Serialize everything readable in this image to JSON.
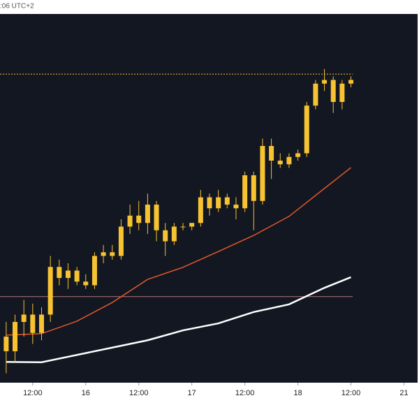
{
  "chart_data": {
    "type": "candlestick",
    "header": ":06 UTC+2",
    "color": "#f7c331",
    "xlim": [
      4.6,
      99.4
    ],
    "ylim": [
      0,
      100
    ],
    "xticks": [
      {
        "value": 12,
        "label": "12:00"
      },
      {
        "value": 24,
        "label": "16"
      },
      {
        "value": 36,
        "label": "12:00"
      },
      {
        "value": 48,
        "label": "17"
      },
      {
        "value": 60,
        "label": "12:00"
      },
      {
        "value": 72,
        "label": "18"
      },
      {
        "value": 84,
        "label": "12:00"
      },
      {
        "value": 96,
        "label": "21"
      }
    ],
    "x": [
      6,
      8,
      10,
      12,
      14,
      16,
      18,
      20,
      22,
      24,
      26,
      28,
      30,
      32,
      34,
      36,
      38,
      40,
      42,
      44,
      46,
      48,
      50,
      52,
      54,
      56,
      58,
      60,
      62,
      64,
      66,
      68,
      70,
      72,
      74,
      76,
      78,
      80,
      82,
      84
    ],
    "open": [
      12,
      8,
      16,
      18,
      13,
      18,
      31,
      28,
      30,
      27,
      26,
      34,
      35,
      34,
      42,
      45,
      43,
      48,
      41,
      38,
      42,
      42,
      43,
      50,
      47,
      50,
      48,
      47,
      56,
      49,
      64,
      60,
      59,
      61,
      62,
      75,
      81,
      82,
      76,
      81
    ],
    "high": [
      16,
      18,
      22,
      21,
      20,
      34,
      33,
      32,
      31,
      29,
      35,
      37,
      37,
      44,
      48,
      49,
      51,
      49,
      43,
      43,
      43,
      43,
      52,
      51,
      52,
      51,
      50,
      57,
      57,
      66,
      66,
      62,
      62,
      63,
      76,
      82,
      85,
      83,
      82,
      83
    ],
    "low": [
      2,
      5,
      12,
      10,
      11,
      16,
      26,
      25,
      26,
      25,
      25,
      32,
      33,
      33,
      40,
      41,
      40,
      38,
      34,
      37,
      41,
      41,
      42,
      45,
      46,
      47,
      44,
      46,
      41,
      48,
      55,
      58,
      58,
      60,
      61,
      74,
      79,
      73,
      74,
      80
    ],
    "close": [
      8,
      16,
      18,
      13,
      18,
      31,
      28,
      30,
      27,
      26,
      34,
      35,
      34,
      42,
      45,
      43,
      48,
      41,
      38,
      42,
      42,
      43,
      50,
      47,
      50,
      48,
      47,
      56,
      49,
      64,
      60,
      59,
      61,
      62,
      75,
      81,
      82,
      76,
      81,
      82
    ],
    "series": [
      {
        "color": "#e0582a",
        "x": [
          6,
          14,
          22,
          30,
          38,
          46,
          54,
          62,
          70,
          78,
          84
        ],
        "values": [
          12.4,
          12.8,
          16.2,
          21.3,
          27.6,
          30.9,
          35.2,
          39.6,
          44.8,
          52.4,
          58.1
        ]
      },
      {
        "color": "#ffffff",
        "x": [
          6,
          14,
          22,
          30,
          38,
          46,
          54,
          62,
          70,
          78,
          84
        ],
        "values": [
          5.1,
          5,
          7,
          9,
          11,
          13.7,
          15.6,
          18.7,
          20.8,
          25.3,
          28.2
        ]
      }
    ],
    "hlines": [
      {
        "value": 83.6,
        "color": "#f7c331",
        "dashed": true
      },
      {
        "value": 22.9,
        "color": "#b5797a",
        "dashed": false
      }
    ]
  }
}
